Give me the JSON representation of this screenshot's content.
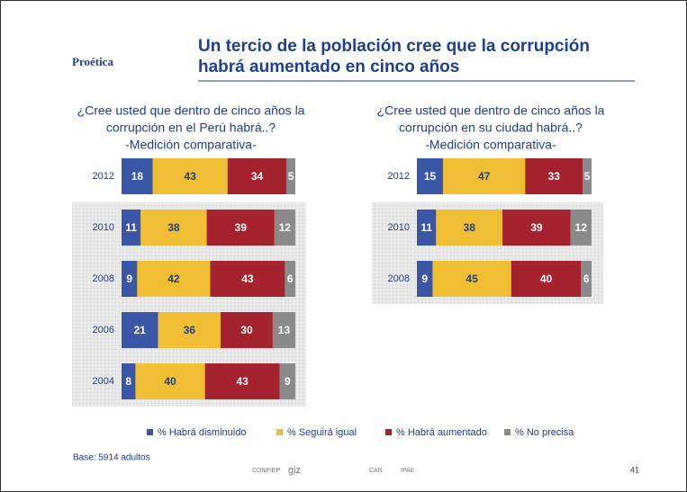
{
  "logo": "Proética",
  "title": [
    "Un tercio de la población cree que la corrupción",
    "habrá aumentado en cinco años"
  ],
  "base": "Base: 5914 adultos",
  "sponsors": [
    "CONFIEP",
    "giz",
    "CAN",
    "IPAE"
  ],
  "page_number": "41",
  "chart_data": [
    {
      "type": "stacked_bar_horizontal",
      "title": [
        "¿Cree usted que dentro de cinco años la",
        "corrupción en el Perú habrá..?"
      ],
      "subtitle": "-Medición comparativa-",
      "categories": [
        "2012",
        "2010",
        "2008",
        "2006",
        "2004"
      ],
      "series": [
        {
          "name": "% Habrá disminuido",
          "color": "#3a56a6",
          "values": [
            18,
            11,
            9,
            21,
            8
          ]
        },
        {
          "name": "% Seguirá igual",
          "color": "#f0be32",
          "values": [
            43,
            38,
            42,
            36,
            40
          ]
        },
        {
          "name": "% Habrá aumentado",
          "color": "#a4232f",
          "values": [
            34,
            39,
            43,
            30,
            43
          ]
        },
        {
          "name": "% No precisa",
          "color": "#8a8a8a",
          "values": [
            5,
            12,
            6,
            13,
            9
          ]
        }
      ]
    },
    {
      "type": "stacked_bar_horizontal",
      "title": [
        "¿Cree usted que dentro de cinco años la",
        "corrupción en su ciudad habrá..?"
      ],
      "subtitle": "-Medición comparativa-",
      "categories": [
        "2012",
        "2010",
        "2008"
      ],
      "series": [
        {
          "color": "#3a56a6",
          "values": [
            15,
            11,
            9
          ]
        },
        {
          "color": "#f0be32",
          "values": [
            47,
            38,
            45
          ]
        },
        {
          "color": "#a4232f",
          "values": [
            33,
            39,
            40
          ]
        },
        {
          "color": "#8a8a8a",
          "values": [
            5,
            12,
            6
          ]
        }
      ]
    }
  ]
}
